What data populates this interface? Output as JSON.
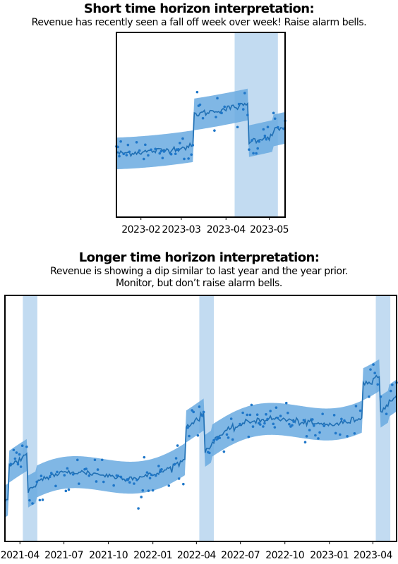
{
  "chart_data": [
    {
      "type": "scatter",
      "title": "Short time horizon interpretation:",
      "subtitle": "Revenue has recently seen a fall off week over week! Raise alarm bells.",
      "x_ticks": [
        "2023-02",
        "2023-03",
        "2023-04",
        "2023-05"
      ],
      "x_range": [
        "2023-01-15",
        "2023-05-12"
      ],
      "highlight": [
        {
          "start": "2023-04-07",
          "end": "2023-05-07"
        }
      ],
      "colors": {
        "points": "#1f77c9",
        "line": "#1f6fb4",
        "band": "#6aaae0",
        "highlight": "#c2dbf1"
      },
      "grid": false,
      "legend": "none"
    },
    {
      "type": "scatter",
      "title": "Longer time horizon interpretation:",
      "subtitle": "Revenue is showing a dip similar to last year and the year prior.",
      "subtitle2": "Monitor, but don’t raise alarm bells.",
      "x_ticks": [
        "2021-04",
        "2021-07",
        "2021-10",
        "2022-01",
        "2022-04",
        "2022-07",
        "2022-10",
        "2023-01",
        "2023-04"
      ],
      "x_range": [
        "2021-03-01",
        "2023-05-20"
      ],
      "highlight": [
        {
          "start": "2021-04-07",
          "end": "2021-05-07"
        },
        {
          "start": "2022-04-07",
          "end": "2022-05-07"
        },
        {
          "start": "2023-04-07",
          "end": "2023-05-07"
        }
      ],
      "colors": {
        "points": "#1f77c9",
        "line": "#1f6fb4",
        "band": "#6aaae0",
        "highlight": "#c2dbf1"
      },
      "grid": false,
      "legend": "none"
    }
  ]
}
